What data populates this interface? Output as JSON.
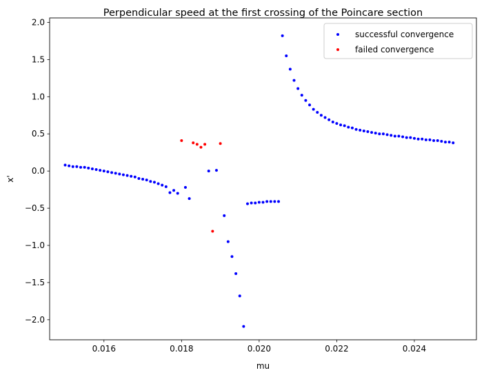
{
  "chart_data": {
    "type": "scatter",
    "title": "Perpendicular speed at the first crossing of the Poincare section",
    "xlabel": "mu",
    "ylabel": "x'",
    "xlim": [
      0.0146,
      0.0256
    ],
    "ylim": [
      -2.27,
      2.06
    ],
    "xticks": [
      {
        "value": 0.016,
        "label": "0.016"
      },
      {
        "value": 0.018,
        "label": "0.018"
      },
      {
        "value": 0.02,
        "label": "0.020"
      },
      {
        "value": 0.022,
        "label": "0.022"
      },
      {
        "value": 0.024,
        "label": "0.024"
      }
    ],
    "yticks": [
      {
        "value": 2.0,
        "label": "2.0"
      },
      {
        "value": 1.5,
        "label": "1.5"
      },
      {
        "value": 1.0,
        "label": "1.0"
      },
      {
        "value": 0.5,
        "label": "0.5"
      },
      {
        "value": 0.0,
        "label": "0.0"
      },
      {
        "value": -0.5,
        "label": "−0.5"
      },
      {
        "value": -1.0,
        "label": "−1.0"
      },
      {
        "value": -1.5,
        "label": "−1.5"
      },
      {
        "value": -2.0,
        "label": "−2.0"
      }
    ],
    "grid": false,
    "legend_position": "top-right",
    "series": [
      {
        "name": "successful convergence",
        "color": "#0000ff",
        "points": [
          [
            0.015,
            0.08
          ],
          [
            0.0151,
            0.07
          ],
          [
            0.0152,
            0.06
          ],
          [
            0.0153,
            0.06
          ],
          [
            0.0154,
            0.05
          ],
          [
            0.0155,
            0.05
          ],
          [
            0.0156,
            0.04
          ],
          [
            0.0157,
            0.03
          ],
          [
            0.0158,
            0.02
          ],
          [
            0.0159,
            0.01
          ],
          [
            0.016,
            0.0
          ],
          [
            0.0161,
            -0.01
          ],
          [
            0.0162,
            -0.02
          ],
          [
            0.0163,
            -0.03
          ],
          [
            0.0164,
            -0.04
          ],
          [
            0.0165,
            -0.05
          ],
          [
            0.0166,
            -0.06
          ],
          [
            0.0167,
            -0.07
          ],
          [
            0.0168,
            -0.08
          ],
          [
            0.0169,
            -0.1
          ],
          [
            0.017,
            -0.11
          ],
          [
            0.0171,
            -0.12
          ],
          [
            0.0172,
            -0.14
          ],
          [
            0.0173,
            -0.15
          ],
          [
            0.0174,
            -0.17
          ],
          [
            0.0175,
            -0.19
          ],
          [
            0.0176,
            -0.21
          ],
          [
            0.0177,
            -0.29
          ],
          [
            0.0178,
            -0.26
          ],
          [
            0.0179,
            -0.3
          ],
          [
            0.0181,
            -0.22
          ],
          [
            0.0182,
            -0.37
          ],
          [
            0.0187,
            0.0
          ],
          [
            0.0189,
            0.01
          ],
          [
            0.0191,
            -0.6
          ],
          [
            0.0192,
            -0.95
          ],
          [
            0.0193,
            -1.15
          ],
          [
            0.0194,
            -1.38
          ],
          [
            0.0195,
            -1.68
          ],
          [
            0.0196,
            -2.09
          ],
          [
            0.0197,
            -0.44
          ],
          [
            0.0198,
            -0.43
          ],
          [
            0.0199,
            -0.43
          ],
          [
            0.02,
            -0.42
          ],
          [
            0.0201,
            -0.42
          ],
          [
            0.0202,
            -0.41
          ],
          [
            0.0203,
            -0.41
          ],
          [
            0.0204,
            -0.41
          ],
          [
            0.0205,
            -0.41
          ],
          [
            0.0206,
            1.82
          ],
          [
            0.0207,
            1.55
          ],
          [
            0.0208,
            1.37
          ],
          [
            0.0209,
            1.22
          ],
          [
            0.021,
            1.11
          ],
          [
            0.0211,
            1.02
          ],
          [
            0.0212,
            0.95
          ],
          [
            0.0213,
            0.89
          ],
          [
            0.0214,
            0.83
          ],
          [
            0.0215,
            0.79
          ],
          [
            0.0216,
            0.75
          ],
          [
            0.0217,
            0.72
          ],
          [
            0.0218,
            0.69
          ],
          [
            0.0219,
            0.66
          ],
          [
            0.022,
            0.64
          ],
          [
            0.0221,
            0.62
          ],
          [
            0.0222,
            0.61
          ],
          [
            0.0223,
            0.59
          ],
          [
            0.0224,
            0.58
          ],
          [
            0.0225,
            0.56
          ],
          [
            0.0226,
            0.55
          ],
          [
            0.0227,
            0.54
          ],
          [
            0.0228,
            0.53
          ],
          [
            0.0229,
            0.52
          ],
          [
            0.023,
            0.51
          ],
          [
            0.0231,
            0.5
          ],
          [
            0.0232,
            0.5
          ],
          [
            0.0233,
            0.49
          ],
          [
            0.0234,
            0.48
          ],
          [
            0.0235,
            0.47
          ],
          [
            0.0236,
            0.47
          ],
          [
            0.0237,
            0.46
          ],
          [
            0.0238,
            0.45
          ],
          [
            0.0239,
            0.45
          ],
          [
            0.024,
            0.44
          ],
          [
            0.0241,
            0.43
          ],
          [
            0.0242,
            0.43
          ],
          [
            0.0243,
            0.42
          ],
          [
            0.0244,
            0.42
          ],
          [
            0.0245,
            0.41
          ],
          [
            0.0246,
            0.41
          ],
          [
            0.0247,
            0.4
          ],
          [
            0.0248,
            0.39
          ],
          [
            0.0249,
            0.39
          ],
          [
            0.025,
            0.38
          ]
        ]
      },
      {
        "name": "failed convergence",
        "color": "#ff0000",
        "points": [
          [
            0.018,
            0.41
          ],
          [
            0.0183,
            0.38
          ],
          [
            0.0184,
            0.36
          ],
          [
            0.0185,
            0.32
          ],
          [
            0.0186,
            0.36
          ],
          [
            0.0188,
            -0.81
          ],
          [
            0.019,
            0.37
          ]
        ]
      }
    ]
  }
}
